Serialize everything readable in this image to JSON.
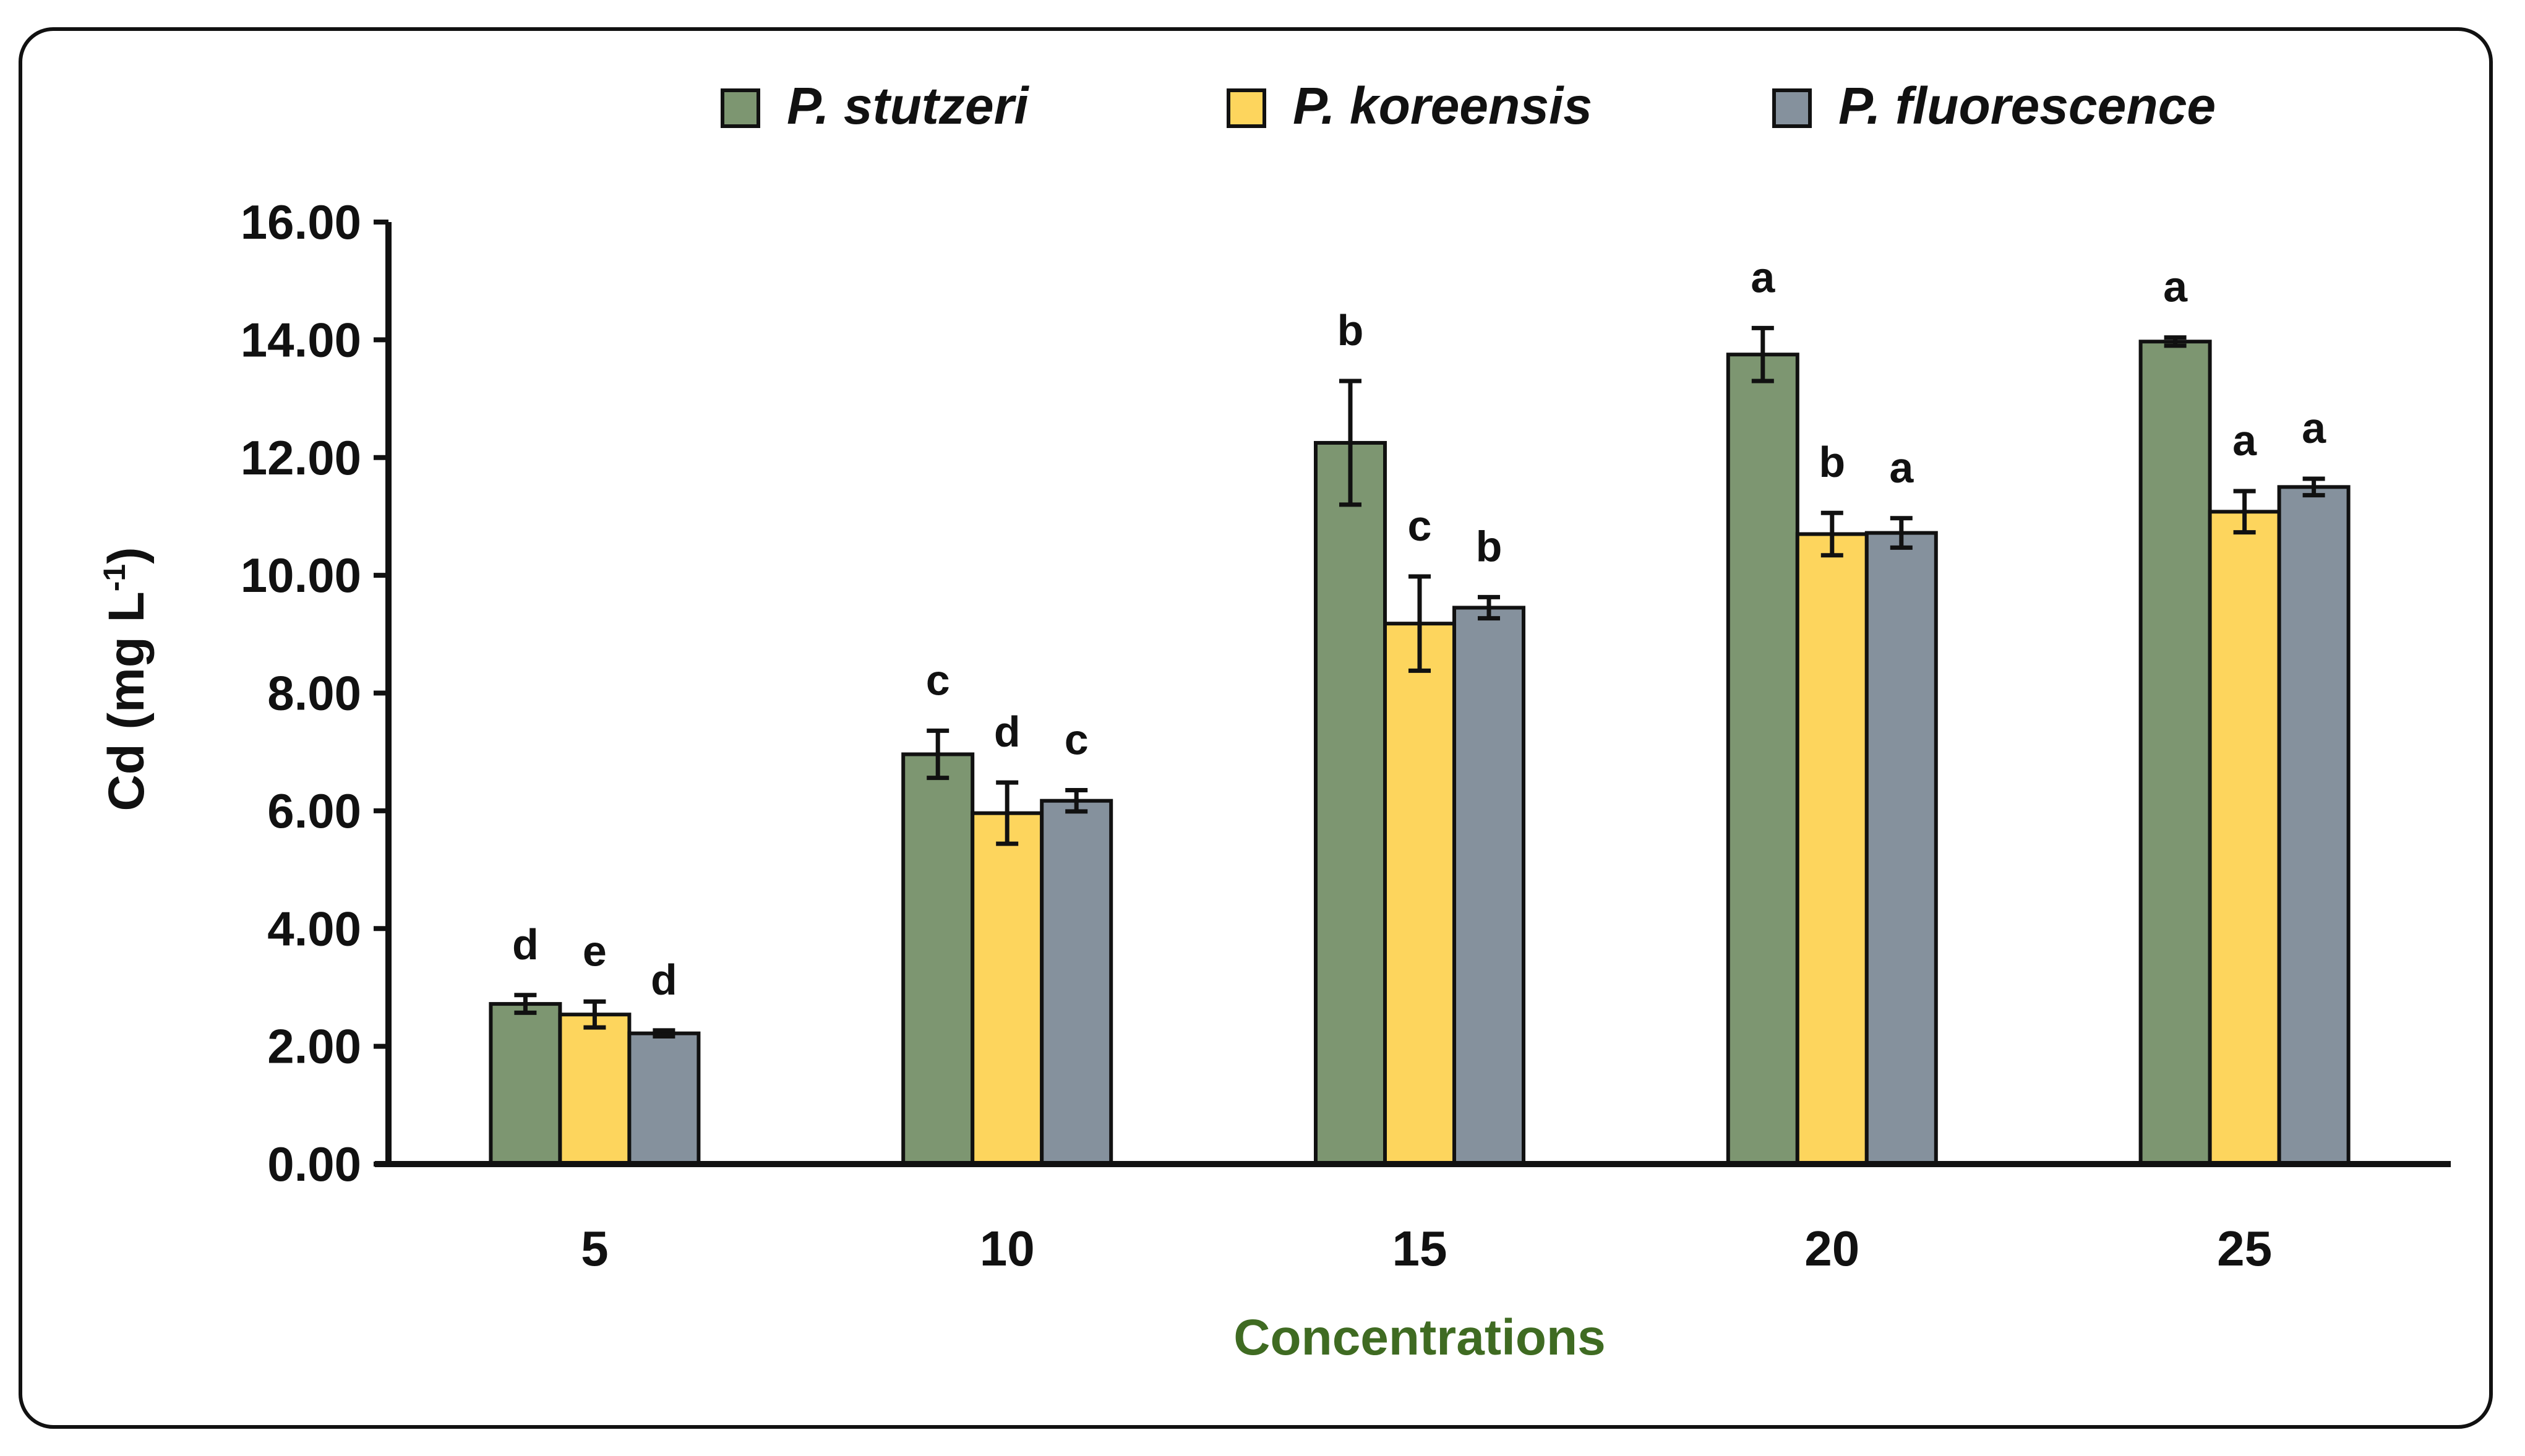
{
  "chart_data": {
    "type": "bar",
    "title": "",
    "xlabel": "Concentrations",
    "ylabel": "Cd (mg L",
    "ylabel_sup": "-1",
    "ylabel_close": ")",
    "ylim": [
      0,
      16
    ],
    "yticks": [
      "0.00",
      "2.00",
      "4.00",
      "6.00",
      "8.00",
      "10.00",
      "12.00",
      "14.00",
      "16.00"
    ],
    "categories": [
      "5",
      "10",
      "15",
      "20",
      "25"
    ],
    "legend_position": "top",
    "xlabel_color": "#3f6b22",
    "series": [
      {
        "name": "P. stutzeri",
        "color": "#7d9671",
        "values": [
          2.72,
          6.96,
          12.25,
          13.75,
          13.97
        ],
        "errors": [
          0.15,
          0.4,
          1.05,
          0.45,
          0.07
        ],
        "letters": [
          "d",
          "c",
          "b",
          "a",
          "a"
        ]
      },
      {
        "name": "P. koreensis",
        "color": "#fdd55d",
        "values": [
          2.54,
          5.96,
          9.18,
          10.7,
          11.08
        ],
        "errors": [
          0.22,
          0.52,
          0.8,
          0.36,
          0.35
        ],
        "letters": [
          "e",
          "d",
          "c",
          "b",
          "a"
        ]
      },
      {
        "name": "P. fluorescence",
        "color": "#85919d",
        "values": [
          2.22,
          6.17,
          9.45,
          10.72,
          11.5
        ],
        "errors": [
          0.05,
          0.18,
          0.18,
          0.25,
          0.14
        ],
        "letters": [
          "d",
          "c",
          "b",
          "a",
          "a"
        ]
      }
    ]
  }
}
